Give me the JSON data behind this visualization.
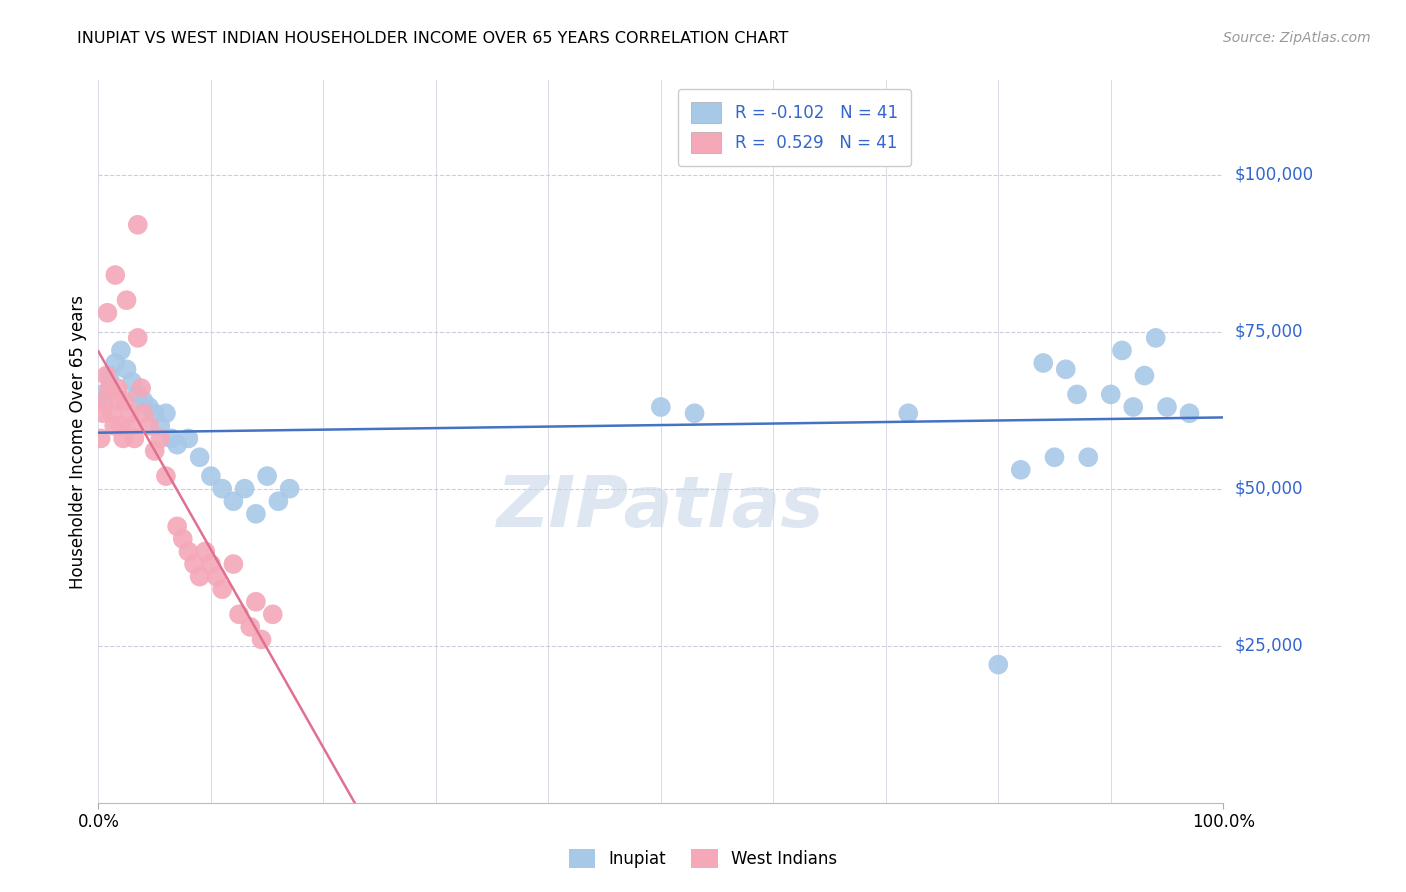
{
  "title": "INUPIAT VS WEST INDIAN HOUSEHOLDER INCOME OVER 65 YEARS CORRELATION CHART",
  "source": "Source: ZipAtlas.com",
  "ylabel": "Householder Income Over 65 years",
  "ytick_labels": [
    "$25,000",
    "$50,000",
    "$75,000",
    "$100,000"
  ],
  "ytick_values": [
    25000,
    50000,
    75000,
    100000
  ],
  "legend_entries": [
    {
      "label": "Inupiat",
      "R": -0.102,
      "N": 41,
      "color": "#a8c8e8"
    },
    {
      "label": "West Indians",
      "R": 0.529,
      "N": 41,
      "color": "#f4a8b8"
    }
  ],
  "inupiat_x": [
    0.3,
    1.0,
    1.5,
    2.0,
    2.5,
    3.0,
    3.5,
    4.0,
    4.5,
    5.0,
    5.5,
    6.0,
    6.5,
    7.0,
    8.0,
    9.0,
    10.0,
    11.0,
    12.0,
    13.0,
    14.0,
    15.0,
    16.0,
    17.0,
    50.0,
    53.0,
    72.0,
    80.0,
    82.0,
    84.0,
    85.0,
    86.0,
    87.0,
    88.0,
    90.0,
    91.0,
    92.0,
    93.0,
    94.0,
    95.0,
    97.0
  ],
  "inupiat_y": [
    65000,
    68000,
    70000,
    72000,
    69000,
    67000,
    65000,
    64000,
    63000,
    62000,
    60000,
    62000,
    58000,
    57000,
    58000,
    55000,
    52000,
    50000,
    48000,
    50000,
    46000,
    52000,
    48000,
    50000,
    63000,
    62000,
    62000,
    22000,
    53000,
    70000,
    55000,
    69000,
    65000,
    55000,
    65000,
    72000,
    63000,
    68000,
    74000,
    63000,
    62000
  ],
  "westindian_x": [
    0.2,
    0.4,
    0.5,
    0.7,
    0.8,
    1.0,
    1.2,
    1.4,
    1.5,
    1.7,
    1.8,
    2.0,
    2.2,
    2.4,
    2.5,
    2.8,
    3.0,
    3.2,
    3.5,
    3.8,
    4.0,
    4.5,
    5.0,
    5.5,
    6.0,
    7.0,
    7.5,
    8.0,
    8.5,
    9.0,
    9.5,
    10.0,
    10.5,
    11.0,
    12.0,
    12.5,
    13.5,
    14.0,
    14.5,
    15.5,
    3.5
  ],
  "westindian_y": [
    58000,
    62000,
    64000,
    68000,
    78000,
    66000,
    62000,
    60000,
    84000,
    66000,
    64000,
    60000,
    58000,
    64000,
    80000,
    62000,
    60000,
    58000,
    74000,
    66000,
    62000,
    60000,
    56000,
    58000,
    52000,
    44000,
    42000,
    40000,
    38000,
    36000,
    40000,
    38000,
    36000,
    34000,
    38000,
    30000,
    28000,
    32000,
    26000,
    30000,
    92000
  ],
  "inupiat_color": "#a8c8e8",
  "westindian_color": "#f4a8b8",
  "inupiat_line_color": "#4472c4",
  "westindian_line_color": "#e07090",
  "background_color": "#ffffff",
  "grid_color": "#ccccdd",
  "ylim": [
    0,
    115000
  ],
  "xlim": [
    0,
    100
  ]
}
